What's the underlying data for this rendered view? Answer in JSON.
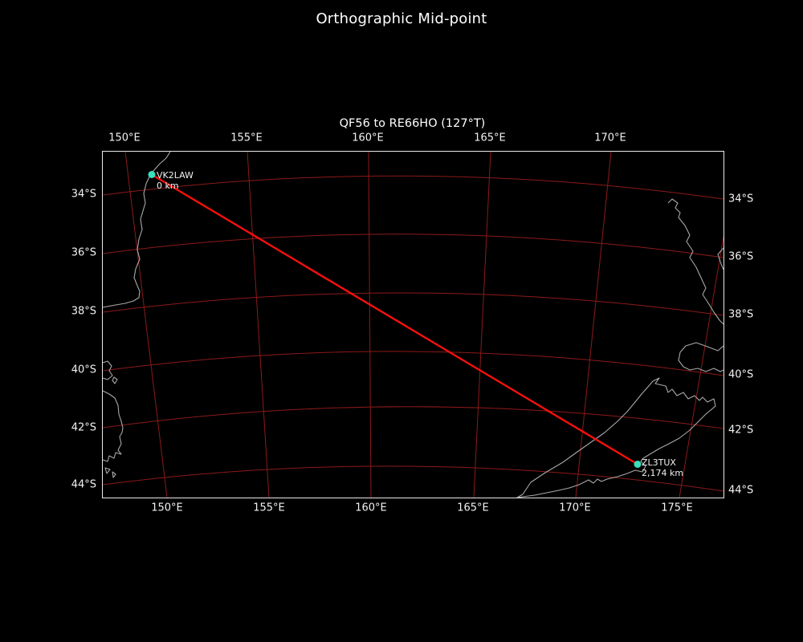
{
  "figure": {
    "title": "Orthographic Mid-point",
    "background": "#000000",
    "text_color": "#ffffff"
  },
  "map": {
    "subtitle": "QF56 to RE66HO (127°T)",
    "projection": "Orthographic",
    "colors": {
      "grid": "#8c1a1a",
      "coast": "#a8a8a8",
      "path": "#f5100c",
      "marker": "#38dfbd",
      "border": "#e9e9e9"
    },
    "axis_ticks": {
      "top": [
        "150°E",
        "155°E",
        "160°E",
        "165°E",
        "170°E"
      ],
      "bottom": [
        "150°E",
        "155°E",
        "160°E",
        "165°E",
        "170°E",
        "175°E"
      ],
      "left": [
        "34°S",
        "36°S",
        "38°S",
        "40°S",
        "42°S",
        "44°S"
      ],
      "right": [
        "34°S",
        "36°S",
        "38°S",
        "40°S",
        "42°S",
        "44°S"
      ]
    },
    "points": [
      {
        "label": "VK2LAW",
        "distance": "0 km"
      },
      {
        "label": "ZL3TUX",
        "distance": "2,174 km"
      }
    ]
  },
  "chart_data": {
    "type": "map",
    "projection": "Orthographic mid-point",
    "title": "QF56 to RE66HO (127°T)",
    "route": {
      "from": {
        "callsign": "VK2LAW",
        "locator": "QF56",
        "distance_label": "0 km"
      },
      "to": {
        "callsign": "ZL3TUX",
        "locator": "RE66HO",
        "distance_label": "2,174 km"
      },
      "bearing_true_deg": 127,
      "distance_km": 2174
    },
    "lon_gridlines_deg_east": [
      150,
      155,
      160,
      165,
      170,
      175
    ],
    "lat_gridlines_deg_south": [
      34,
      36,
      38,
      40,
      42,
      44
    ],
    "visible_land": [
      "southeast Australia coast",
      "Tasmania",
      "New Zealand"
    ]
  }
}
